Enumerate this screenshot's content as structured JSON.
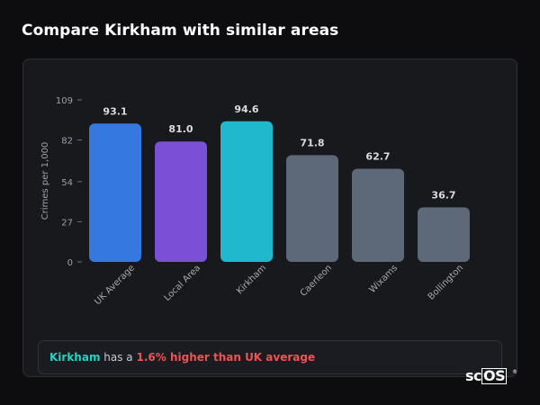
{
  "heading": "Compare Kirkham with similar areas",
  "chart_data": {
    "type": "bar",
    "categories": [
      "UK Average",
      "Local Area",
      "Kirkham",
      "Caerleon",
      "Wixams",
      "Bollington"
    ],
    "values": [
      93.1,
      81.0,
      94.6,
      71.8,
      62.7,
      36.7
    ],
    "value_labels": [
      "93.1",
      "81.0",
      "94.6",
      "71.8",
      "62.7",
      "36.7"
    ],
    "bar_colors": [
      "#3478e0",
      "#7b4fd6",
      "#1fb8cc",
      "#5d6878",
      "#5d6878",
      "#5d6878"
    ],
    "ylabel": "Crimes per 1,000",
    "ylim": [
      0,
      109
    ],
    "yticks": [
      0,
      27,
      54,
      82,
      109
    ],
    "grid": false
  },
  "summary": {
    "area": "Kirkham",
    "middle": " has a ",
    "delta": "1.6% higher than UK average"
  },
  "logo": {
    "prefix": "sc",
    "boxed": "OS",
    "mark": "®"
  },
  "colors": {
    "background": "#0d0d10",
    "card": "#18191d",
    "highlight": "#22d3c5",
    "negative": "#f05252"
  }
}
